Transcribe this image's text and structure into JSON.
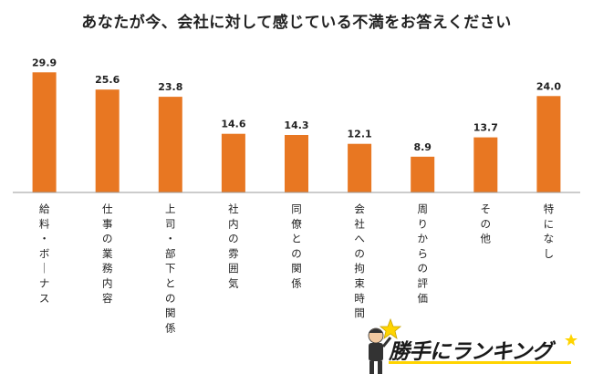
{
  "chart_data": {
    "type": "bar",
    "title": "あなたが今、会社に対して感じている不満をお答えください",
    "categories": [
      "給料・ボーナス",
      "仕事の業務内容",
      "上司・部下との関係",
      "社内の雰囲気",
      "同僚との関係",
      "会社への拘束時間",
      "周りからの評価",
      "その他",
      "特になし"
    ],
    "values": [
      29.9,
      25.6,
      23.8,
      14.6,
      14.3,
      12.1,
      8.9,
      13.7,
      24.0
    ],
    "value_labels": [
      "29.9",
      "25.6",
      "23.8",
      "14.6",
      "14.3",
      "12.1",
      "8.9",
      "13.7",
      "24.0"
    ],
    "ylim": [
      0,
      32
    ],
    "xlabel": "",
    "ylabel": "",
    "bar_color": "#E87722",
    "axis_color": "#999999"
  },
  "logo": {
    "text_main": "勝手に",
    "text_small": "に",
    "text_brand": "ランキング"
  }
}
